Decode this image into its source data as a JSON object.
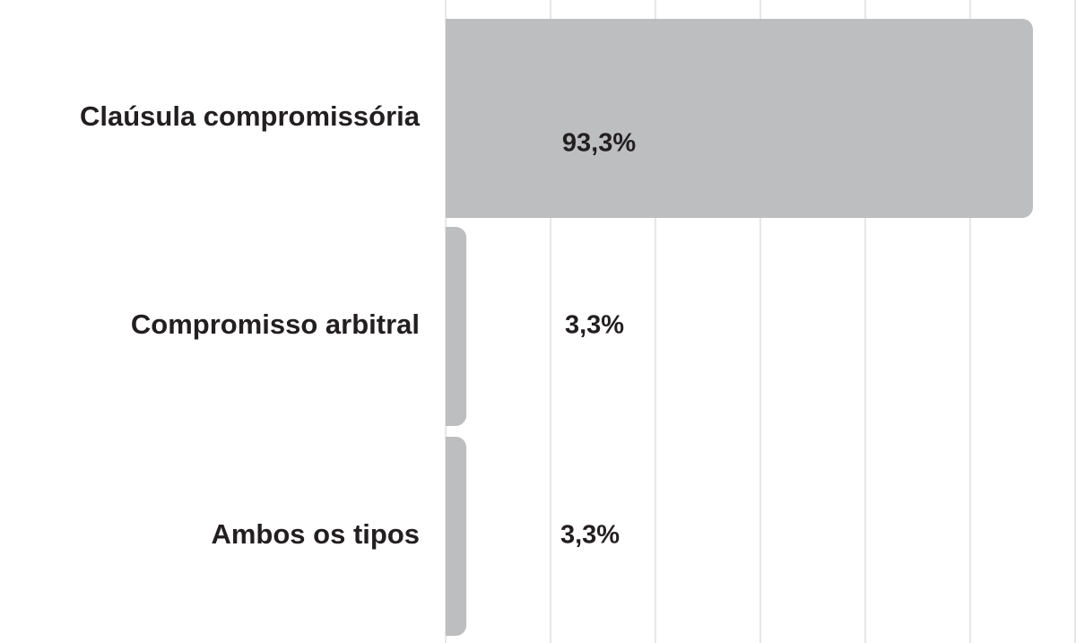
{
  "chart_data": {
    "type": "barh",
    "categories": [
      "Claúsula compromissória",
      "Compromisso arbitral",
      "Ambos os tipos"
    ],
    "values": [
      93.3,
      3.3,
      3.3
    ],
    "value_labels": [
      "93,3%",
      "3,3%",
      "3,3%"
    ],
    "color": "#bdbec0",
    "xlim": [
      0,
      100
    ],
    "xticks": [
      0,
      16.67,
      33.33,
      50,
      66.67,
      83.33,
      100
    ],
    "grid": true
  }
}
